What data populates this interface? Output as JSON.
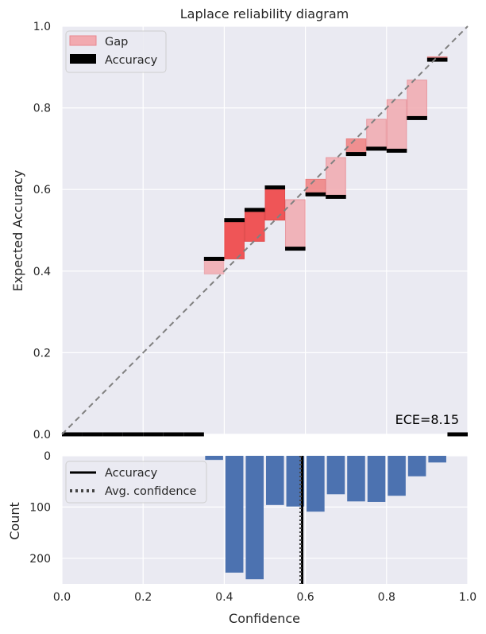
{
  "chart_data": [
    {
      "type": "bar",
      "title": "Laplace reliability diagram",
      "xlabel": "",
      "ylabel": "Expected Accuracy",
      "xlim": [
        0.0,
        1.0
      ],
      "ylim": [
        0.0,
        1.0
      ],
      "grid": true,
      "legend_position": "top-left",
      "legend": [
        "Gap",
        "Accuracy"
      ],
      "y_ticks": [
        "0.0",
        "0.2",
        "0.4",
        "0.6",
        "0.8",
        "1.0"
      ],
      "bin_width": 0.05,
      "bin_starts": [
        0.0,
        0.05,
        0.1,
        0.15,
        0.2,
        0.25,
        0.3,
        0.35,
        0.4,
        0.45,
        0.5,
        0.55,
        0.6,
        0.65,
        0.7,
        0.75,
        0.8,
        0.85,
        0.9,
        0.95
      ],
      "series": [
        {
          "name": "Accuracy",
          "values": [
            0,
            0,
            0,
            0,
            0,
            0,
            0,
            0.43,
            0.525,
            0.55,
            0.605,
            0.455,
            0.588,
            0.582,
            0.687,
            0.7,
            0.695,
            0.775,
            0.918,
            0
          ]
        },
        {
          "name": "Confidence",
          "values": [
            0,
            0,
            0,
            0,
            0,
            0,
            0,
            0.393,
            0.43,
            0.473,
            0.525,
            0.575,
            0.625,
            0.678,
            0.724,
            0.772,
            0.82,
            0.868,
            0.925,
            0
          ]
        }
      ],
      "annotation": "ECE=8.15",
      "color_accuracy": "#000000",
      "color_gap": "#f08080",
      "color_gap_strong": "#f03c3c",
      "color_gap_light": "#f2aab0",
      "color_diagonal": "#808080"
    },
    {
      "type": "bar",
      "xlabel": "Confidence",
      "ylabel": "Count",
      "xlim": [
        0.0,
        1.0
      ],
      "ylim": [
        250,
        0
      ],
      "grid": true,
      "legend_position": "top-left",
      "legend": [
        "Accuracy",
        "Avg. confidence"
      ],
      "x_ticks": [
        "0.0",
        "0.2",
        "0.4",
        "0.6",
        "0.8",
        "1.0"
      ],
      "y_ticks": [
        "0",
        "100",
        "200"
      ],
      "bin_starts": [
        0.35,
        0.4,
        0.45,
        0.5,
        0.55,
        0.6,
        0.65,
        0.7,
        0.75,
        0.8,
        0.85,
        0.9
      ],
      "bin_width": 0.05,
      "values": [
        8,
        228,
        241,
        96,
        99,
        109,
        75,
        89,
        90,
        78,
        40,
        13
      ],
      "accuracy_line": 0.592,
      "avg_confidence_line": 0.588,
      "color_bar": "#4c72b0",
      "color_accuracy": "#000000",
      "color_avg_conf": "#444444"
    }
  ]
}
